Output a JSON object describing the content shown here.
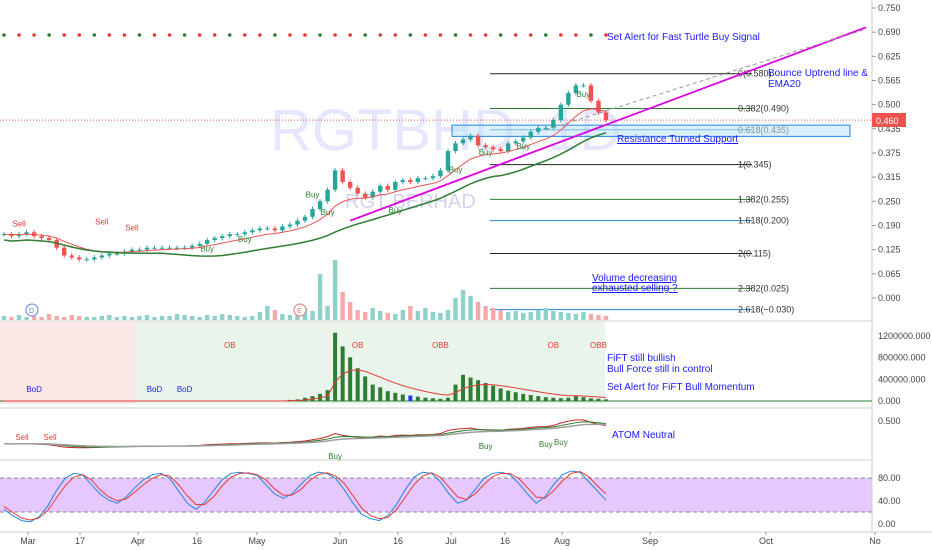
{
  "watermark": {
    "symbol": "RGTBHD, 1D",
    "name": "RGT BERHAD"
  },
  "price_badge": "0.460",
  "colors": {
    "up": "#26a69a",
    "down": "#ef5350",
    "accent": "#1a1aff",
    "trend": "#e000e0",
    "stoch_bg": "#e6c8ff"
  },
  "annotations": {
    "turtle": "Set Alert for Fast Turtle Buy Signal",
    "bounce": "Bounce Uptrend line &",
    "bounce2": "EMA20",
    "resistance": "Resistance Turned Support",
    "volume1": "Volume decreasing",
    "volume2": "exhausted selling ?",
    "fift1": "FiFT still bullish",
    "fift2": "Bull Force still in control",
    "fift3": "Set Alert for FiFT Bull Momentum",
    "atom": "ATOM Neutral"
  },
  "markers": {
    "buy": "Buy",
    "sell": "Sell",
    "ob": "OB",
    "obb": "OBB",
    "bod": "BoD",
    "d": "D",
    "e": "E"
  },
  "fib_labels": [
    "0(0.580)",
    "0.382(0.490)",
    "0.618(0.435)",
    "1(0.345)",
    "1.382(0.255)",
    "1.618(0.200)",
    "2(0.115)",
    "2.382(0.025)",
    "2.618(−0.030)"
  ],
  "chart_data": [
    {
      "type": "candlestick",
      "title": "RGTBHD, 1D",
      "x_ticks": [
        "Mar",
        "17",
        "Apr",
        "16",
        "May",
        "Jun",
        "16",
        "Jul",
        "16",
        "Aug",
        "Sep",
        "Oct",
        "No"
      ],
      "y_ticks": [
        "0.750",
        "0.690",
        "0.625",
        "0.565",
        "0.500",
        "0.435",
        "0.375",
        "0.315",
        "0.250",
        "0.190",
        "0.125",
        "0.065",
        "0.000"
      ],
      "ylim": [
        -0.05,
        0.77
      ],
      "close": [
        0.165,
        0.16,
        0.165,
        0.17,
        0.16,
        0.155,
        0.15,
        0.13,
        0.11,
        0.105,
        0.1,
        0.1,
        0.105,
        0.11,
        0.115,
        0.115,
        0.12,
        0.125,
        0.125,
        0.13,
        0.13,
        0.13,
        0.13,
        0.13,
        0.13,
        0.135,
        0.14,
        0.15,
        0.155,
        0.16,
        0.165,
        0.165,
        0.17,
        0.175,
        0.18,
        0.18,
        0.175,
        0.185,
        0.19,
        0.2,
        0.21,
        0.23,
        0.25,
        0.28,
        0.33,
        0.3,
        0.285,
        0.27,
        0.26,
        0.275,
        0.29,
        0.28,
        0.3,
        0.305,
        0.3,
        0.31,
        0.31,
        0.315,
        0.33,
        0.38,
        0.4,
        0.41,
        0.42,
        0.395,
        0.39,
        0.385,
        0.38,
        0.4,
        0.405,
        0.415,
        0.43,
        0.44,
        0.44,
        0.46,
        0.5,
        0.53,
        0.55,
        0.55,
        0.51,
        0.48,
        0.46
      ]
    },
    {
      "type": "overlay",
      "fibonacci": [
        {
          "level": "0",
          "value": 0.58
        },
        {
          "level": "0.382",
          "value": 0.49
        },
        {
          "level": "0.618",
          "value": 0.435
        },
        {
          "level": "1",
          "value": 0.345
        },
        {
          "level": "1.382",
          "value": 0.255
        },
        {
          "level": "1.618",
          "value": 0.2
        },
        {
          "level": "2",
          "value": 0.115
        },
        {
          "level": "2.382",
          "value": 0.025
        },
        {
          "level": "2.618",
          "value": -0.03
        }
      ]
    },
    {
      "type": "bar",
      "title": "FiFT",
      "y_ticks": [
        "1200000.000",
        "800000.000",
        "400000.000",
        "0.000"
      ],
      "ylim": [
        0,
        1300000
      ],
      "values": [
        0,
        0,
        0,
        0,
        0,
        0,
        0,
        0,
        0,
        0,
        0,
        0,
        0,
        0,
        0,
        0,
        0,
        0,
        0,
        0,
        0,
        0,
        0,
        0,
        0,
        0,
        0,
        0,
        0,
        0,
        0,
        0,
        0,
        0,
        0,
        0,
        0,
        0,
        20000,
        30000,
        60000,
        90000,
        130000,
        200000,
        1250000,
        1000000,
        800000,
        600000,
        450000,
        300000,
        250000,
        180000,
        150000,
        120000,
        100000,
        80000,
        60000,
        50000,
        40000,
        60000,
        300000,
        480000,
        430000,
        380000,
        330000,
        280000,
        230000,
        190000,
        160000,
        130000,
        110000,
        90000,
        70000,
        60000,
        50000,
        60000,
        90000,
        70000,
        50000,
        40000,
        30000
      ]
    },
    {
      "type": "line",
      "title": "ATOM",
      "y_ticks": [
        "0.500"
      ],
      "ylim": [
        0.2,
        0.6
      ]
    },
    {
      "type": "line",
      "title": "Stochastic",
      "y_ticks": [
        "80.00",
        "40.00",
        "0.00"
      ],
      "ylim": [
        -5,
        105
      ],
      "series": [
        {
          "values": [
            30,
            20,
            12,
            10,
            18,
            35,
            60,
            80,
            88,
            86,
            70,
            55,
            45,
            40,
            50,
            65,
            78,
            86,
            88,
            80,
            60,
            40,
            30,
            42,
            60,
            78,
            88,
            90,
            88,
            85,
            70,
            55,
            48,
            55,
            70,
            84,
            90,
            88,
            80,
            62,
            40,
            22,
            15,
            12,
            20,
            38,
            62,
            82,
            90,
            88,
            75,
            55,
            40,
            45,
            62,
            80,
            88,
            90,
            86,
            72,
            55,
            40,
            50,
            70,
            86,
            92,
            90,
            75,
            60,
            45
          ]
        },
        {
          "values": [
            35,
            25,
            16,
            13,
            16,
            28,
            48,
            68,
            82,
            86,
            78,
            62,
            50,
            44,
            47,
            58,
            70,
            80,
            86,
            84,
            70,
            52,
            38,
            38,
            50,
            68,
            82,
            88,
            89,
            86,
            78,
            63,
            53,
            53,
            62,
            76,
            86,
            89,
            84,
            72,
            52,
            32,
            20,
            15,
            17,
            30,
            50,
            70,
            84,
            89,
            82,
            66,
            50,
            46,
            55,
            70,
            83,
            88,
            88,
            80,
            65,
            50,
            48,
            60,
            76,
            88,
            91,
            83,
            68,
            55
          ]
        }
      ]
    }
  ]
}
